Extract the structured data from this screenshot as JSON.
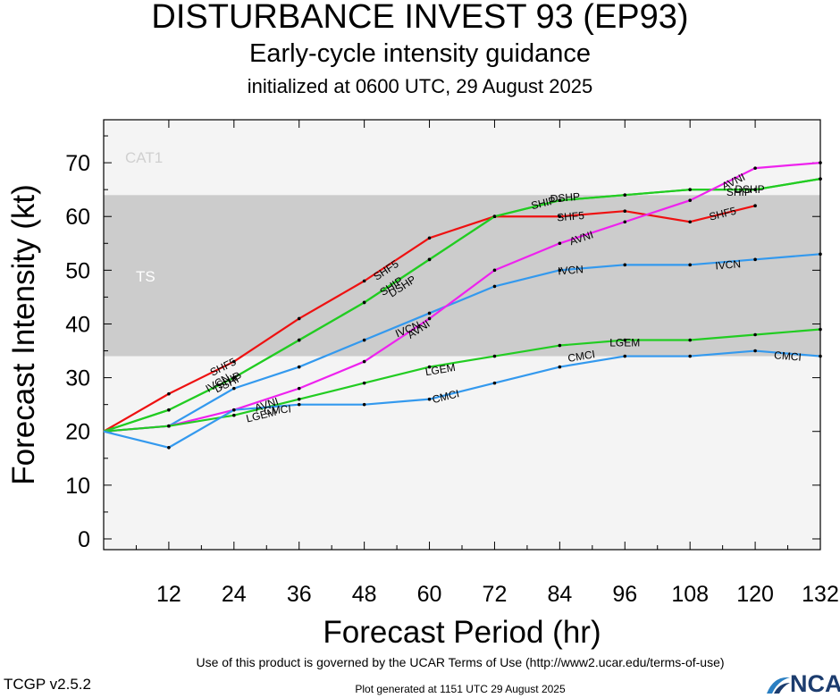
{
  "header": {
    "title": "DISTURBANCE INVEST 93 (EP93)",
    "subtitle": "Early-cycle intensity guidance",
    "init_line": "initialized at 0600 UTC, 29 August 2025"
  },
  "footer": {
    "terms": "Use of this product is governed by the UCAR Terms of Use (http://www2.ucar.edu/terms-of-use)",
    "version": "TCGP v2.5.2",
    "generated": "Plot generated at 1151 UTC   29 August 2025",
    "logo_text": "NCAR"
  },
  "chart_data": {
    "type": "line",
    "xlabel": "Forecast Period (hr)",
    "ylabel": "Forecast Intensity (kt)",
    "xlim": [
      0,
      132
    ],
    "ylim": [
      -2,
      78
    ],
    "x_ticks": [
      12,
      24,
      36,
      48,
      60,
      72,
      84,
      96,
      108,
      120,
      132
    ],
    "y_ticks": [
      0,
      10,
      20,
      30,
      40,
      50,
      60,
      70
    ],
    "bands": [
      {
        "label": "TS",
        "from": 34,
        "to": 64,
        "color": "#cccccc"
      },
      {
        "label": "CAT1",
        "from": 64,
        "to": 78,
        "color": "#f4f4f4"
      }
    ],
    "below_band_color": "#f4f4f4",
    "x": [
      0,
      12,
      24,
      36,
      48,
      60,
      72,
      84,
      96,
      108,
      120,
      132
    ],
    "series": [
      {
        "name": "SHF5",
        "color": "#ee1111",
        "values": [
          20,
          27,
          33,
          41,
          48,
          56,
          60,
          60,
          61,
          59,
          62,
          null
        ],
        "labels": [
          {
            "x": 22,
            "y": 32
          },
          {
            "x": 52,
            "y": 50
          },
          {
            "x": 86,
            "y": 60
          },
          {
            "x": 114,
            "y": 60.5
          }
        ]
      },
      {
        "name": "DSHP",
        "color": "#22cc22",
        "values": [
          20,
          24,
          30,
          37,
          44,
          52,
          60,
          63,
          64,
          65,
          65,
          67
        ],
        "labels": [
          {
            "x": 23,
            "y": 29
          },
          {
            "x": 55,
            "y": 47
          },
          {
            "x": 85,
            "y": 63.5
          },
          {
            "x": 119,
            "y": 65
          }
        ]
      },
      {
        "name": "SHIP",
        "color": "#22cc22",
        "values": [
          20,
          24,
          30,
          37,
          44,
          52,
          60,
          63,
          64,
          65,
          65,
          67
        ],
        "labels": [
          {
            "x": 23,
            "y": 29.5
          },
          {
            "x": 53,
            "y": 47
          },
          {
            "x": 81,
            "y": 62.5
          },
          {
            "x": 117,
            "y": 64.5
          }
        ]
      },
      {
        "name": "IVCN",
        "color": "#3399ee",
        "values": [
          20,
          21,
          28,
          32,
          37,
          42,
          47,
          50,
          51,
          51,
          52,
          53
        ],
        "labels": [
          {
            "x": 21,
            "y": 29
          },
          {
            "x": 56,
            "y": 39
          },
          {
            "x": 86,
            "y": 50
          },
          {
            "x": 115,
            "y": 51
          }
        ]
      },
      {
        "name": "AVNI",
        "color": "#ee22ee",
        "values": [
          20,
          21,
          24,
          28,
          33,
          41,
          50,
          55,
          59,
          63,
          69,
          70
        ],
        "labels": [
          {
            "x": 30,
            "y": 25
          },
          {
            "x": 58,
            "y": 39
          },
          {
            "x": 88,
            "y": 56
          },
          {
            "x": 116,
            "y": 66.5
          }
        ]
      },
      {
        "name": "LGEM",
        "color": "#22cc22",
        "values": [
          20,
          21,
          23,
          26,
          29,
          32,
          34,
          36,
          37,
          37,
          38,
          39
        ],
        "labels": [
          {
            "x": 29,
            "y": 23
          },
          {
            "x": 62,
            "y": 31.5
          },
          {
            "x": 96,
            "y": 36.5
          }
        ]
      },
      {
        "name": "CMCI",
        "color": "#3399ee",
        "values": [
          20,
          17,
          24,
          25,
          25,
          26,
          29,
          32,
          34,
          34,
          35,
          34
        ],
        "labels": [
          {
            "x": 32,
            "y": 24
          },
          {
            "x": 63,
            "y": 26.5
          },
          {
            "x": 88,
            "y": 34
          },
          {
            "x": 126,
            "y": 34
          }
        ]
      }
    ],
    "category_labels": [
      "CAT1",
      "TS"
    ],
    "grid": false,
    "legend": "none"
  }
}
